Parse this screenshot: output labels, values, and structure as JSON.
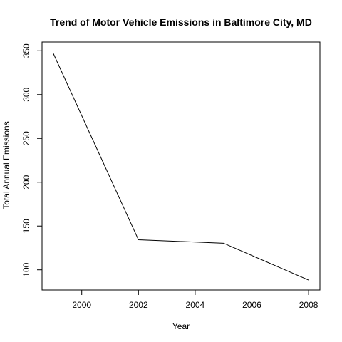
{
  "chart_data": {
    "type": "line",
    "title": "Trend of Motor Vehicle Emissions in Baltimore City, MD",
    "xlabel": "Year",
    "ylabel": "Total Annual Emissions",
    "xlim": [
      1998.6,
      2008.4
    ],
    "ylim": [
      77,
      360
    ],
    "xticks": [
      2000,
      2002,
      2004,
      2006,
      2008
    ],
    "yticks": [
      100,
      150,
      200,
      250,
      300,
      350
    ],
    "grid": false,
    "x": [
      1999,
      2002,
      2005,
      2008
    ],
    "series": [
      {
        "values": [
          346.8,
          134.3,
          130.4,
          88.3
        ],
        "color": "#000000"
      }
    ]
  }
}
